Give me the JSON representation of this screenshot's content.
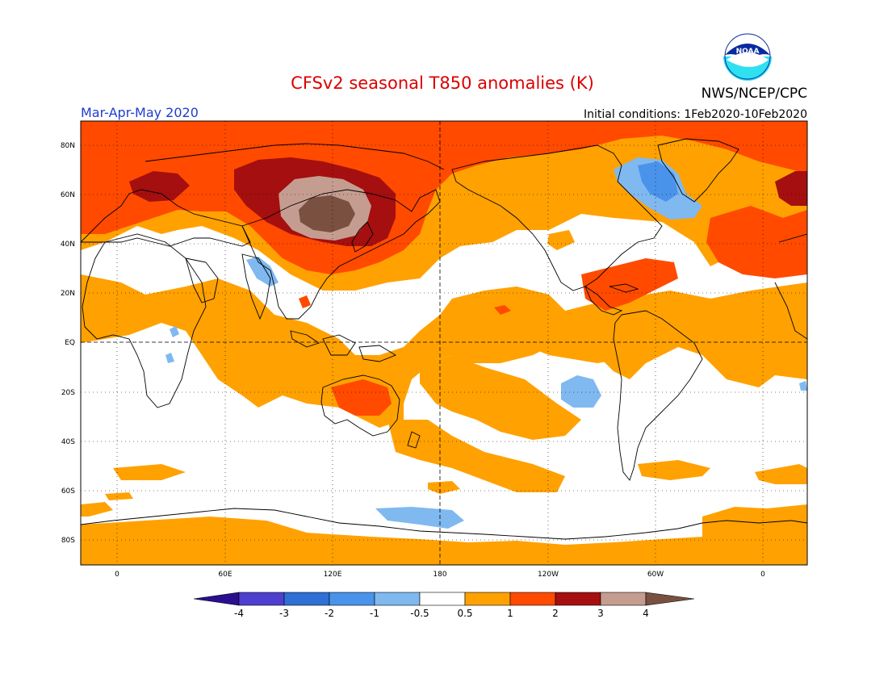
{
  "title": "CFSv2 seasonal T850 anomalies (K)",
  "season": "Mar-Apr-May 2020",
  "initial_conditions": "Initial conditions: 1Feb2020-10Feb2020",
  "agency": "NWS/NCEP/CPC",
  "logo_text": "NOAA",
  "map": {
    "lat_labels": [
      "80N",
      "60N",
      "40N",
      "20N",
      "EQ",
      "20S",
      "40S",
      "60S",
      "80S"
    ],
    "lon_labels": [
      "0",
      "60E",
      "120E",
      "180",
      "120W",
      "60W",
      "0"
    ]
  },
  "colorbar": {
    "labels": [
      "-4",
      "-3",
      "-2",
      "-1",
      "-0.5",
      "0.5",
      "1",
      "2",
      "3",
      "4"
    ],
    "colors": [
      "#2a0f8f",
      "#4f3fcf",
      "#2f6fd6",
      "#4a93ea",
      "#7fb9f0",
      "#ffffff",
      "#ffa100",
      "#ff4a00",
      "#a50f0f",
      "#c59d90",
      "#7a5040"
    ]
  },
  "colors": {
    "title": "#dd0000",
    "season": "#1e3cd2",
    "land_outline": "#000000"
  }
}
